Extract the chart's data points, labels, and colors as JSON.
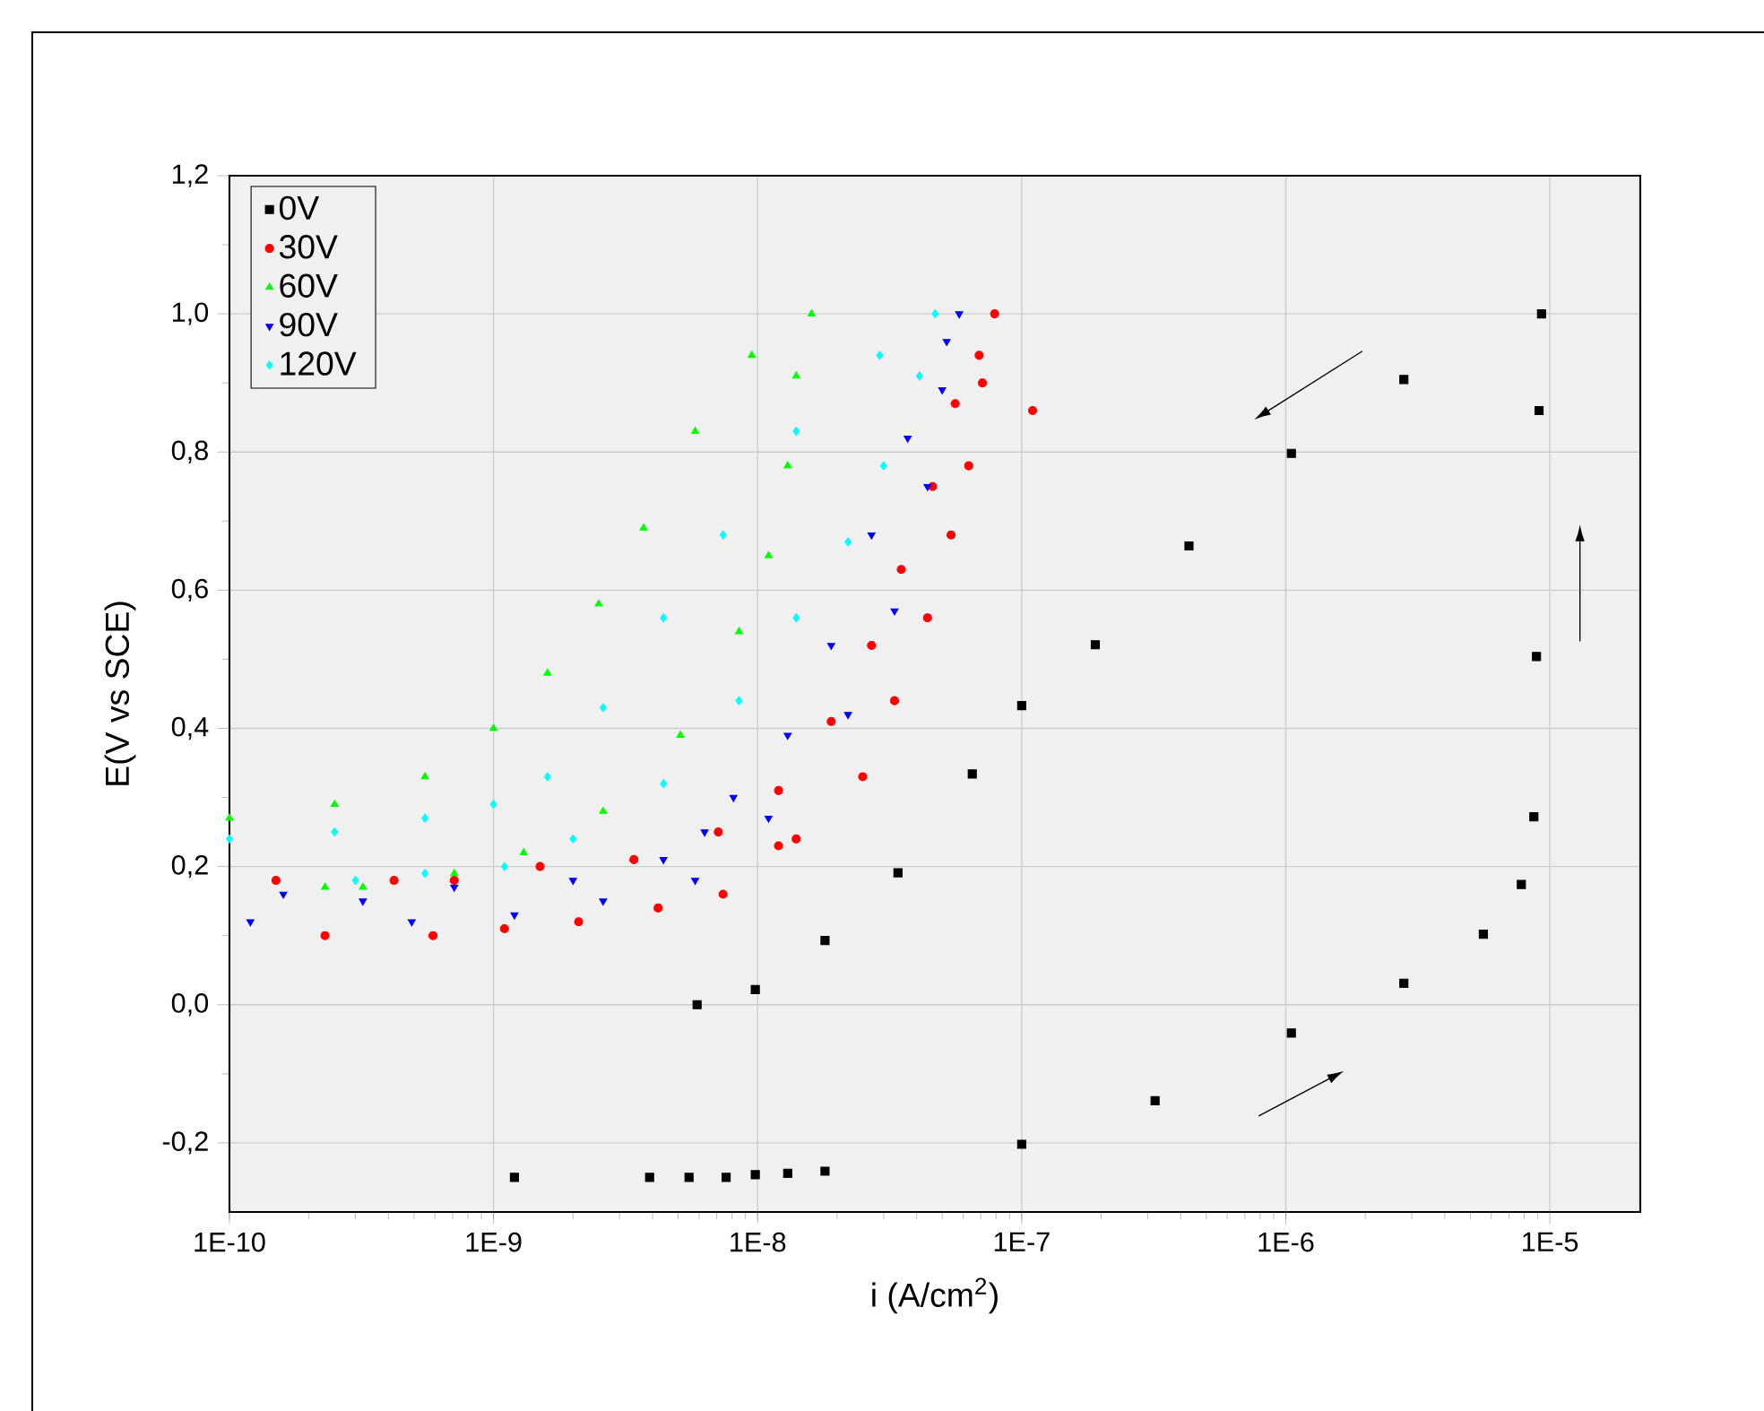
{
  "chart_data": {
    "type": "scatter",
    "xlabel": "i (A/cm$^{2}$)",
    "ylabel": "E(V vs SCE)",
    "log": "x",
    "grid": true,
    "legend": "top left",
    "xlim": [
      1e-10,
      2.2e-05
    ],
    "ylim": [
      -0.3,
      1.2
    ],
    "xticks": [
      {
        "value": 1e-10,
        "label": "1E-10"
      },
      {
        "value": 1e-09,
        "label": "1E-9"
      },
      {
        "value": 1e-08,
        "label": "1E-8"
      },
      {
        "value": 1e-07,
        "label": "1E-7"
      },
      {
        "value": 1e-06,
        "label": "1E-6"
      },
      {
        "value": 1e-05,
        "label": "1E-5"
      }
    ],
    "yticks": [
      {
        "value": -0.2,
        "label": "-0,2"
      },
      {
        "value": 0,
        "label": "0,0"
      },
      {
        "value": 0.2,
        "label": "0,2"
      },
      {
        "value": 0.4,
        "label": "0,4"
      },
      {
        "value": 0.6,
        "label": "0,6"
      },
      {
        "value": 0.8,
        "label": "0,8"
      },
      {
        "value": 1.0,
        "label": "1,0"
      },
      {
        "value": 1.2,
        "label": "1,2"
      }
    ],
    "series": [
      {
        "name": "0V",
        "color": "#000000",
        "marker": "square",
        "x": [
          1.2e-09,
          3.9e-09,
          5.5e-09,
          7.6e-09,
          9.8e-09,
          1.3e-08,
          1.8e-08,
          1e-07,
          3.2e-07,
          1.05e-06,
          2.8e-06,
          5.6e-06,
          7.8e-06,
          8.7e-06,
          8.9e-06,
          9.1e-06,
          9.3e-06,
          2.8e-06,
          1.05e-06,
          4.3e-07,
          1.9e-07,
          1e-07,
          6.5e-08,
          3.4e-08,
          1.8e-08,
          9.8e-09,
          5.9e-09
        ],
        "values": [
          -0.25,
          -0.25,
          -0.25,
          -0.25,
          -0.246,
          -0.244,
          -0.241,
          -0.202,
          -0.139,
          -0.041,
          0.031,
          0.102,
          0.174,
          0.272,
          0.504,
          0.86,
          1.0,
          0.905,
          0.798,
          0.664,
          0.521,
          0.433,
          0.334,
          0.191,
          0.093,
          0.022,
          0.0
        ]
      },
      {
        "name": "30V",
        "color": "#ff0000",
        "marker": "circle",
        "x": [
          2.3e-10,
          5.9e-10,
          1.1e-09,
          2.1e-09,
          4.2e-09,
          7.4e-09,
          1.2e-08,
          1.4e-08,
          2.5e-08,
          3.3e-08,
          4.4e-08,
          5.4e-08,
          6.3e-08,
          7.1e-08,
          7.9e-08,
          6.9e-08,
          5.6e-08,
          4.6e-08,
          3.5e-08,
          2.7e-08,
          1.9e-08,
          1.2e-08,
          7.1e-09,
          3.4e-09,
          1.5e-09,
          7.1e-10,
          4.2e-10,
          1.5e-10,
          1.1e-07
        ],
        "values": [
          0.1,
          0.1,
          0.11,
          0.12,
          0.14,
          0.16,
          0.23,
          0.24,
          0.33,
          0.44,
          0.56,
          0.68,
          0.78,
          0.9,
          1.0,
          0.94,
          0.87,
          0.75,
          0.63,
          0.52,
          0.41,
          0.31,
          0.25,
          0.21,
          0.2,
          0.18,
          0.18,
          0.18,
          0.86
        ]
      },
      {
        "name": "60V",
        "color": "#00ff00",
        "marker": "triangle",
        "x": [
          1e-10,
          2.5e-10,
          5.5e-10,
          1e-09,
          1.6e-09,
          2.5e-09,
          3.7e-09,
          5.8e-09,
          9.5e-09,
          1.6e-08,
          1.4e-08,
          1.3e-08,
          1.1e-08,
          8.5e-09,
          5.1e-09,
          2.6e-09,
          1.3e-09,
          7.1e-10,
          3.2e-10,
          2.3e-10
        ],
        "values": [
          0.27,
          0.29,
          0.33,
          0.4,
          0.48,
          0.58,
          0.69,
          0.83,
          0.94,
          1.0,
          0.91,
          0.78,
          0.65,
          0.54,
          0.39,
          0.28,
          0.22,
          0.19,
          0.17,
          0.17
        ]
      },
      {
        "name": "90V",
        "color": "#0000ff",
        "marker": "triangle-down",
        "x": [
          1.2e-10,
          1.6e-10,
          4.9e-10,
          1.2e-09,
          2.6e-09,
          5.8e-09,
          1.1e-08,
          2.2e-08,
          3.3e-08,
          4.4e-08,
          5e-08,
          5.8e-08,
          5.2e-08,
          3.7e-08,
          2.7e-08,
          1.9e-08,
          1.3e-08,
          8.1e-09,
          6.3e-09,
          4.4e-09,
          2e-09,
          7.1e-10,
          3.2e-10
        ],
        "values": [
          0.12,
          0.16,
          0.12,
          0.13,
          0.15,
          0.18,
          0.27,
          0.42,
          0.57,
          0.75,
          0.89,
          1.0,
          0.96,
          0.82,
          0.68,
          0.52,
          0.39,
          0.3,
          0.25,
          0.21,
          0.18,
          0.17,
          0.15
        ]
      },
      {
        "name": "120V",
        "color": "#00ffff",
        "marker": "diamond",
        "x": [
          1e-10,
          2.5e-10,
          5.5e-10,
          1e-09,
          1.6e-09,
          2.6e-09,
          4.4e-09,
          7.4e-09,
          1.4e-08,
          2.9e-08,
          4.7e-08,
          4.1e-08,
          3e-08,
          2.2e-08,
          1.4e-08,
          8.5e-09,
          4.4e-09,
          2e-09,
          1.1e-09,
          5.5e-10,
          3e-10
        ],
        "values": [
          0.24,
          0.25,
          0.27,
          0.29,
          0.33,
          0.43,
          0.56,
          0.68,
          0.83,
          0.94,
          1.0,
          0.91,
          0.78,
          0.67,
          0.56,
          0.44,
          0.32,
          0.24,
          0.2,
          0.19,
          0.18
        ]
      }
    ]
  }
}
